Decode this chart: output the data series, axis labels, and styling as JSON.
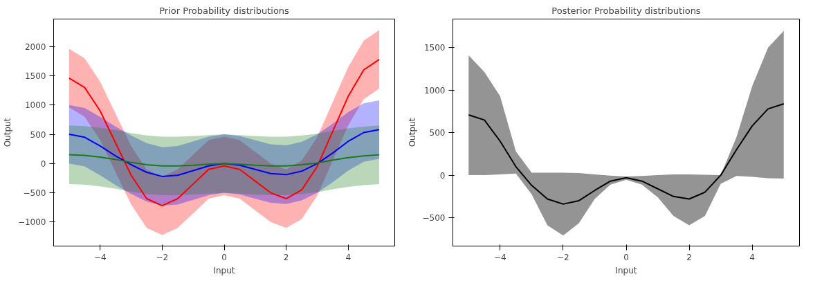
{
  "chart_data": [
    {
      "type": "line",
      "title": "Prior Probability distributions",
      "xlabel": "Input",
      "ylabel": "Output",
      "x": [
        -5,
        -4.5,
        -4,
        -3.5,
        -3,
        -2.5,
        -2,
        -1.5,
        -1,
        -0.5,
        0,
        0.5,
        1,
        1.5,
        2,
        2.5,
        3,
        3.5,
        4,
        4.5,
        5
      ],
      "series": [
        {
          "color": "#ff0000",
          "values": [
            1460,
            1300,
            900,
            350,
            -200,
            -600,
            -720,
            -600,
            -350,
            -100,
            -40,
            -100,
            -300,
            -500,
            -600,
            -450,
            -50,
            550,
            1150,
            1600,
            1780
          ],
          "upper": [
            1960,
            1800,
            1400,
            850,
            300,
            -100,
            -220,
            -100,
            150,
            400,
            460,
            400,
            200,
            0,
            -100,
            50,
            450,
            1050,
            1650,
            2100,
            2280
          ],
          "lower": [
            960,
            800,
            400,
            -150,
            -700,
            -1100,
            -1220,
            -1100,
            -850,
            -600,
            -540,
            -600,
            -800,
            -1000,
            -1100,
            -950,
            -550,
            50,
            650,
            1100,
            1280
          ]
        },
        {
          "color": "#0000ff",
          "values": [
            500,
            450,
            300,
            130,
            -20,
            -150,
            -220,
            -200,
            -120,
            -40,
            0,
            -30,
            -100,
            -170,
            -190,
            -130,
            0,
            180,
            380,
            530,
            580
          ],
          "upper": [
            1000,
            950,
            800,
            630,
            480,
            350,
            280,
            300,
            380,
            460,
            500,
            470,
            400,
            330,
            310,
            370,
            500,
            680,
            880,
            1030,
            1080
          ],
          "lower": [
            0,
            -50,
            -200,
            -370,
            -520,
            -650,
            -720,
            -700,
            -620,
            -540,
            -500,
            -530,
            -600,
            -670,
            -690,
            -630,
            -500,
            -320,
            -120,
            30,
            80
          ]
        },
        {
          "color": "#1a7a1a",
          "values": [
            150,
            140,
            110,
            70,
            20,
            -20,
            -40,
            -40,
            -30,
            -10,
            0,
            -10,
            -30,
            -40,
            -40,
            -20,
            10,
            60,
            100,
            130,
            150
          ],
          "upper": [
            650,
            640,
            610,
            570,
            520,
            480,
            460,
            460,
            470,
            485,
            500,
            485,
            470,
            460,
            460,
            480,
            510,
            560,
            600,
            630,
            650
          ],
          "lower": [
            -350,
            -360,
            -390,
            -430,
            -480,
            -520,
            -540,
            -540,
            -530,
            -515,
            -500,
            -515,
            -530,
            -540,
            -540,
            -520,
            -490,
            -440,
            -400,
            -370,
            -350
          ]
        }
      ],
      "xlim": [
        -5.5,
        5.5
      ],
      "ylim": [
        -1410,
        2470
      ],
      "xticks": [
        -4,
        -2,
        0,
        2,
        4
      ],
      "yticks": [
        -1000,
        -500,
        0,
        500,
        1000,
        1500,
        2000
      ],
      "grid": false,
      "marker": "none",
      "line_style": "solid"
    },
    {
      "type": "line",
      "title": "Posterior Probability distributions",
      "xlabel": "Input",
      "ylabel": "Output",
      "x": [
        -5,
        -4.5,
        -4,
        -3.5,
        -3,
        -2.5,
        -2,
        -1.5,
        -1,
        -0.5,
        0,
        0.5,
        1,
        1.5,
        2,
        2.5,
        3,
        3.5,
        4,
        4.5,
        5
      ],
      "series": [
        {
          "color": "#000000",
          "values": [
            710,
            650,
            400,
            100,
            -120,
            -280,
            -340,
            -300,
            -180,
            -70,
            -30,
            -70,
            -160,
            -250,
            -280,
            -200,
            0,
            300,
            580,
            780,
            840
          ],
          "upper": [
            1410,
            1215,
            930,
            280,
            30,
            30,
            30,
            25,
            10,
            -5,
            -15,
            -10,
            0,
            10,
            10,
            5,
            0,
            450,
            1050,
            1500,
            1700
          ],
          "lower": [
            0,
            0,
            10,
            20,
            -225,
            -590,
            -710,
            -565,
            -280,
            -110,
            -55,
            -110,
            -260,
            -480,
            -590,
            -480,
            -100,
            -10,
            -20,
            -35,
            -40
          ]
        }
      ],
      "xlim": [
        -5.5,
        5.5
      ],
      "ylim": [
        -834,
        1838
      ],
      "xticks": [
        -4,
        -2,
        0,
        2,
        4
      ],
      "yticks": [
        -500,
        0,
        500,
        1000,
        1500
      ],
      "grid": false,
      "marker": "none",
      "line_style": "solid"
    }
  ]
}
